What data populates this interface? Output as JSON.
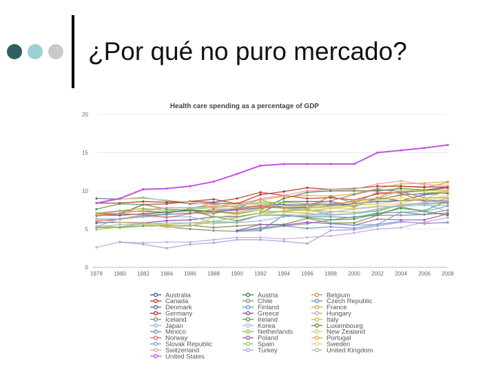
{
  "slide": {
    "title": "¿Por qué no puro mercado?",
    "bullet_dot_colors": [
      "#2e5f63",
      "#9ecfd4",
      "#c9c9c9"
    ]
  },
  "chart_data": {
    "type": "line",
    "title": "Health care spending as a percentage of GDP",
    "xlabel": "",
    "ylabel": "",
    "ylim": [
      0,
      20
    ],
    "yticks": [
      0,
      5,
      10,
      15,
      20
    ],
    "xlim": [
      1978,
      2008
    ],
    "xticks": [
      1978,
      1980,
      1982,
      1984,
      1986,
      1988,
      1990,
      1992,
      1994,
      1996,
      1998,
      2000,
      2002,
      2004,
      2006,
      2008
    ],
    "grid": true,
    "legend_position": "bottom",
    "x": [
      1978,
      1980,
      1982,
      1984,
      1986,
      1988,
      1990,
      1992,
      1994,
      1996,
      1998,
      2000,
      2002,
      2004,
      2006,
      2008
    ],
    "series": [
      {
        "name": "Australia",
        "color": "#2f63a8",
        "values": [
          6.8,
          6.8,
          7.0,
          7.2,
          7.5,
          7.3,
          7.5,
          7.8,
          7.8,
          7.9,
          8.0,
          8.3,
          8.6,
          8.7,
          8.8,
          8.7
        ]
      },
      {
        "name": "Austria",
        "color": "#3f7f3a",
        "values": [
          7.0,
          7.4,
          7.3,
          7.2,
          7.4,
          7.3,
          7.0,
          7.5,
          9.0,
          9.8,
          10.0,
          10.0,
          10.0,
          10.3,
          10.1,
          10.5
        ]
      },
      {
        "name": "Belgium",
        "color": "#c9a13a",
        "values": [
          6.0,
          6.3,
          6.9,
          6.9,
          7.1,
          7.2,
          7.2,
          7.7,
          8.0,
          8.3,
          8.3,
          8.6,
          9.0,
          10.6,
          10.4,
          11.1
        ]
      },
      {
        "name": "Canada",
        "color": "#c0392b",
        "values": [
          7.0,
          7.0,
          8.2,
          8.3,
          8.6,
          8.5,
          9.0,
          9.8,
          9.4,
          9.0,
          9.1,
          8.8,
          9.6,
          9.8,
          10.0,
          10.4
        ]
      },
      {
        "name": "Chile",
        "color": "#8a8a8a",
        "values": [
          null,
          null,
          null,
          5.3,
          5.0,
          4.8,
          4.7,
          5.2,
          5.4,
          5.7,
          6.2,
          6.6,
          6.8,
          6.8,
          6.9,
          7.5
        ]
      },
      {
        "name": "Czech Republic",
        "color": "#6d8fb3",
        "values": [
          null,
          null,
          null,
          null,
          null,
          null,
          4.7,
          4.8,
          6.8,
          6.6,
          6.6,
          6.5,
          7.1,
          7.2,
          6.9,
          7.1
        ]
      },
      {
        "name": "Denmark",
        "color": "#4a6f9c",
        "values": [
          9.0,
          8.9,
          9.1,
          8.7,
          8.3,
          8.4,
          8.3,
          8.3,
          8.2,
          8.1,
          8.2,
          8.3,
          8.8,
          9.5,
          9.6,
          9.9
        ]
      },
      {
        "name": "Finland",
        "color": "#5a9bd4",
        "values": [
          6.3,
          6.3,
          6.7,
          6.9,
          7.1,
          7.0,
          7.7,
          8.9,
          7.7,
          7.6,
          6.9,
          7.0,
          7.4,
          8.2,
          8.3,
          8.4
        ]
      },
      {
        "name": "France",
        "color": "#e0a43a",
        "values": [
          6.8,
          7.0,
          7.5,
          7.8,
          7.8,
          8.0,
          8.4,
          8.8,
          9.3,
          9.4,
          9.3,
          9.6,
          10.3,
          10.9,
          11.0,
          11.2
        ]
      },
      {
        "name": "Germany",
        "color": "#a83232",
        "values": [
          8.4,
          8.4,
          8.6,
          8.5,
          8.6,
          8.9,
          8.3,
          9.5,
          9.9,
          10.4,
          10.2,
          10.3,
          10.6,
          10.6,
          10.5,
          10.5
        ]
      },
      {
        "name": "Greece",
        "color": "#7a4b9c",
        "values": [
          5.8,
          5.9,
          5.8,
          6.1,
          6.2,
          6.6,
          6.6,
          7.1,
          8.6,
          8.6,
          8.6,
          7.9,
          9.1,
          8.7,
          9.5,
          9.7
        ]
      },
      {
        "name": "Hungary",
        "color": "#b0b0b0",
        "values": [
          null,
          null,
          null,
          null,
          null,
          null,
          null,
          7.3,
          7.3,
          7.0,
          6.9,
          7.0,
          7.6,
          8.2,
          8.3,
          7.3
        ]
      },
      {
        "name": "Iceland",
        "color": "#7f8c8d",
        "values": [
          6.0,
          6.3,
          6.6,
          7.0,
          7.7,
          8.3,
          7.8,
          8.1,
          8.0,
          8.2,
          8.7,
          9.5,
          10.2,
          9.9,
          9.1,
          9.1
        ]
      },
      {
        "name": "Ireland",
        "color": "#4aa050",
        "values": [
          7.6,
          8.3,
          8.2,
          7.6,
          7.5,
          6.6,
          6.1,
          6.8,
          6.8,
          6.5,
          6.2,
          6.3,
          7.0,
          7.7,
          7.4,
          8.7
        ]
      },
      {
        "name": "Italy",
        "color": "#d9b84a",
        "values": [
          null,
          null,
          null,
          null,
          null,
          7.4,
          7.7,
          8.0,
          7.7,
          7.4,
          7.7,
          8.1,
          8.3,
          8.7,
          9.0,
          9.1
        ]
      },
      {
        "name": "Japan",
        "color": "#9fb4d4",
        "values": [
          5.3,
          6.4,
          6.6,
          6.6,
          6.6,
          5.9,
          5.8,
          6.1,
          6.6,
          6.8,
          7.2,
          7.6,
          7.9,
          8.0,
          8.1,
          8.1
        ]
      },
      {
        "name": "Korea",
        "color": "#c7a8d9",
        "values": [
          2.6,
          3.3,
          3.2,
          3.3,
          3.3,
          3.6,
          3.9,
          3.9,
          3.7,
          3.9,
          4.1,
          4.5,
          5.0,
          5.2,
          5.9,
          6.5
        ]
      },
      {
        "name": "Luxembourg",
        "color": "#6e8b3d",
        "values": [
          5.2,
          5.2,
          5.4,
          5.4,
          5.5,
          5.2,
          5.4,
          5.6,
          5.6,
          6.4,
          5.8,
          5.8,
          6.8,
          7.9,
          7.3,
          6.8
        ]
      },
      {
        "name": "Mexico",
        "color": "#5f9bc2",
        "values": [
          null,
          null,
          null,
          null,
          null,
          null,
          4.8,
          5.0,
          5.4,
          5.1,
          5.3,
          5.1,
          5.6,
          6.0,
          5.7,
          5.9
        ]
      },
      {
        "name": "Netherlands",
        "color": "#8bc34a",
        "values": [
          7.1,
          7.4,
          7.7,
          7.4,
          7.6,
          7.8,
          8.0,
          8.5,
          8.5,
          8.3,
          8.1,
          8.0,
          8.9,
          9.4,
          9.7,
          9.9
        ]
      },
      {
        "name": "New Zealand",
        "color": "#e6c86e",
        "values": [
          6.2,
          5.9,
          5.7,
          5.2,
          5.4,
          6.5,
          6.9,
          7.5,
          7.2,
          7.1,
          7.7,
          7.7,
          8.0,
          8.4,
          9.0,
          9.9
        ]
      },
      {
        "name": "Norway",
        "color": "#d36b6b",
        "values": [
          6.7,
          7.0,
          6.9,
          6.5,
          7.0,
          7.6,
          7.6,
          8.0,
          7.8,
          7.8,
          9.3,
          8.4,
          9.8,
          9.7,
          8.6,
          8.5
        ]
      },
      {
        "name": "Poland",
        "color": "#9b59b6",
        "values": [
          null,
          null,
          null,
          null,
          null,
          null,
          4.8,
          5.6,
          5.5,
          5.9,
          5.7,
          5.5,
          6.3,
          6.2,
          6.2,
          7.0
        ]
      },
      {
        "name": "Portugal",
        "color": "#c4b454",
        "values": [
          5.4,
          5.3,
          5.8,
          5.6,
          5.8,
          6.0,
          5.9,
          6.8,
          7.4,
          7.7,
          7.9,
          8.8,
          9.0,
          10.0,
          10.0,
          10.1
        ]
      },
      {
        "name": "Slovak Republic",
        "color": "#7aa6c2",
        "values": [
          null,
          null,
          null,
          null,
          null,
          null,
          null,
          null,
          null,
          null,
          5.8,
          5.5,
          5.6,
          7.2,
          7.3,
          8.0
        ]
      },
      {
        "name": "Spain",
        "color": "#9ccc65",
        "values": [
          4.9,
          5.3,
          5.6,
          5.5,
          5.4,
          6.0,
          6.5,
          7.1,
          7.3,
          7.5,
          7.3,
          7.2,
          7.3,
          8.2,
          8.4,
          9.0
        ]
      },
      {
        "name": "Sweden",
        "color": "#f0d37a",
        "values": [
          8.4,
          8.9,
          9.0,
          8.8,
          8.5,
          8.1,
          8.2,
          8.3,
          8.0,
          8.0,
          7.9,
          8.2,
          8.8,
          9.1,
          8.9,
          9.4
        ]
      },
      {
        "name": "Switzerland",
        "color": "#e8a0a0",
        "values": [
          7.0,
          7.3,
          7.3,
          7.8,
          7.8,
          7.9,
          8.0,
          9.0,
          9.4,
          10.0,
          10.2,
          10.2,
          10.9,
          11.3,
          10.8,
          10.7
        ]
      },
      {
        "name": "Turkey",
        "color": "#b39ddb",
        "values": [
          null,
          3.3,
          3.0,
          2.5,
          3.0,
          3.2,
          3.6,
          3.6,
          3.4,
          3.1,
          4.8,
          4.9,
          5.4,
          5.9,
          5.8,
          5.8
        ]
      },
      {
        "name": "United Kingdom",
        "color": "#aab7c4",
        "values": [
          5.3,
          5.6,
          5.7,
          5.8,
          5.8,
          5.7,
          5.9,
          6.8,
          6.9,
          6.8,
          6.8,
          7.0,
          7.6,
          8.0,
          8.5,
          8.7
        ]
      },
      {
        "name": "United States",
        "color": "#c154e0",
        "values": [
          8.4,
          9.0,
          10.2,
          10.3,
          10.6,
          11.2,
          12.2,
          13.3,
          13.5,
          13.5,
          13.5,
          13.5,
          15.0,
          15.3,
          15.6,
          16.0
        ]
      }
    ]
  }
}
